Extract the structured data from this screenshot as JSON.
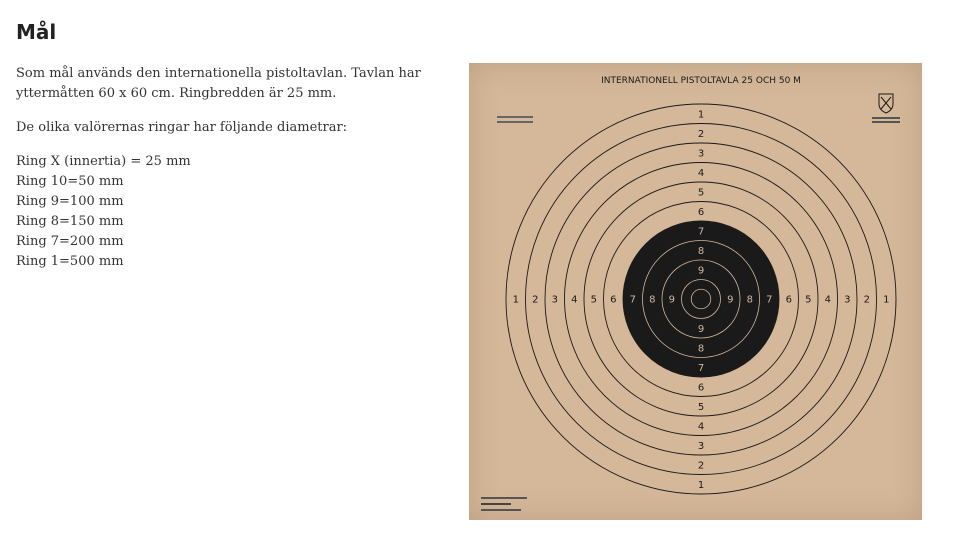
{
  "heading": "Mål",
  "paragraphs": [
    "Som mål används den internationella pistoltavlan. Tavlan har yttermåtten 60 x 60 cm. Ringbredden är 25 mm.",
    "De olika valörernas ringar har följande diametrar:"
  ],
  "rings": [
    "Ring X (innertia) = 25 mm",
    "Ring 10=50 mm",
    "Ring 9=100 mm",
    "Ring 8=150 mm",
    "Ring 7=200 mm",
    "Ring 1=500 mm"
  ],
  "target": {
    "title": "INTERNATIONELL PISTOLTAVLA 25 OCH 50 M",
    "ring_numbers": [
      "1",
      "2",
      "3",
      "4",
      "5",
      "6",
      "7",
      "8",
      "9"
    ],
    "colors": {
      "paper": "#d5b79a",
      "ink": "#1a1a1a"
    }
  }
}
